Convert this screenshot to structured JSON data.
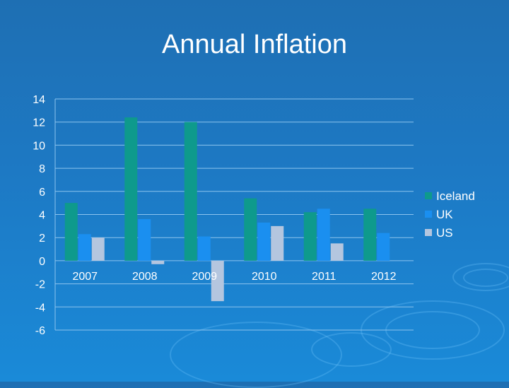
{
  "slide": {
    "title": "Annual Inflation"
  },
  "colors": {
    "background": "#1d79c4",
    "gridline": "#8cc3ee",
    "text": "#ffffff"
  },
  "chart_data": {
    "type": "bar",
    "title": "Annual Inflation",
    "xlabel": "",
    "ylabel": "",
    "categories": [
      "2007",
      "2008",
      "2009",
      "2010",
      "2011",
      "2012"
    ],
    "series": [
      {
        "name": "Iceland",
        "color": "#0e9a8c",
        "values": [
          5.0,
          12.4,
          12.0,
          5.4,
          4.2,
          4.5
        ]
      },
      {
        "name": "UK",
        "color": "#1a8ff0",
        "values": [
          2.3,
          3.6,
          2.1,
          3.3,
          4.5,
          2.4
        ]
      },
      {
        "name": "US",
        "color": "#b4c6df",
        "values": [
          2.0,
          -0.3,
          -3.5,
          3.0,
          1.5,
          0.0
        ]
      }
    ],
    "ylim": [
      -6,
      14
    ],
    "yticks": [
      "14",
      "12",
      "10",
      "8",
      "6",
      "4",
      "2",
      "0",
      "-2",
      "-4",
      "-6"
    ],
    "grid": true,
    "legend": "right"
  }
}
